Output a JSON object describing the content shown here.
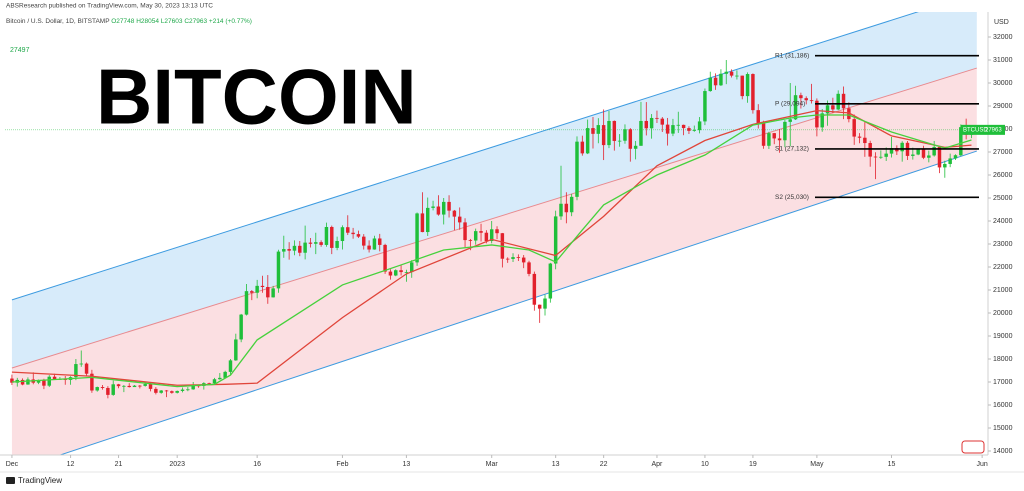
{
  "header": {
    "publisher": "ABSResearch published on TradingView.com, May 30, 2023 13:13 UTC",
    "symbol": "Bitcoin / U.S. Dollar, 1D, BITSTAMP",
    "ohlc": [
      "O27748",
      "H28054",
      "L27603",
      "C27963",
      "+214 (+0.77%)"
    ]
  },
  "overlay_title": "BITCOIN",
  "side_label": "27497",
  "footer": "TradingView",
  "chart_data": {
    "type": "candlestick",
    "series_name": "BTCUSD",
    "currency": "USD",
    "up_color": "#1fbf3a",
    "down_color": "#e2202c",
    "open": [
      17150,
      16970,
      17090,
      16890,
      17110,
      16970,
      17090,
      16840,
      17230,
      17130,
      17130,
      17090,
      17210,
      17780,
      17800,
      17360,
      16630,
      16780,
      16740,
      16440,
      16900,
      16820,
      16830,
      16780,
      16840,
      16830,
      16910,
      16700,
      16530,
      16630,
      16600,
      16530,
      16610,
      16670,
      16680,
      16850,
      16830,
      16950,
      16940,
      17120,
      17180,
      17440,
      17940,
      18850,
      19930,
      20950,
      20880,
      21180,
      21130,
      20680,
      21070,
      22670,
      22780,
      22710,
      22920,
      22620,
      23060,
      23010,
      23080,
      22960,
      23740,
      22830,
      23130,
      23730,
      23490,
      23430,
      23320,
      22930,
      22760,
      23240,
      22960,
      21800,
      21630,
      21860,
      21780,
      21780,
      22200,
      24330,
      23520,
      24570,
      24630,
      24280,
      24830,
      24450,
      24190,
      23940,
      23170,
      23150,
      23560,
      23490,
      23130,
      23640,
      23470,
      22360,
      22350,
      22430,
      22410,
      22200,
      21700,
      20360,
      20190,
      20630,
      22150,
      24200,
      24750,
      24380,
      25050,
      27450,
      26940,
      28040,
      27790,
      28170,
      27300,
      28350,
      27480,
      27490,
      27990,
      27140,
      27270,
      28350,
      28030,
      28480,
      28450,
      28190,
      27800,
      28170,
      28180,
      28040,
      27920,
      27950,
      28330,
      29650,
      30230,
      29900,
      30400,
      30490,
      30320,
      30320,
      29430,
      30390,
      28820,
      28250,
      27270,
      27820,
      27590,
      27510,
      28310,
      28420,
      29470,
      29340,
      29250,
      29230,
      28070,
      28680,
      29030,
      28850,
      29530,
      28900,
      28430,
      27670,
      27620,
      27390,
      26800,
      26780,
      26790,
      26930,
      27170,
      27030,
      27400,
      26830,
      26890,
      27120,
      26750,
      26850,
      27220,
      26330,
      26480,
      26720,
      26860,
      28080,
      27748
    ],
    "high": [
      17320,
      17180,
      17160,
      17200,
      17420,
      17110,
      17140,
      17300,
      17360,
      17220,
      17260,
      17250,
      18000,
      18370,
      17850,
      17530,
      16800,
      16870,
      16820,
      17060,
      16920,
      16870,
      16950,
      16870,
      16870,
      16940,
      16960,
      16780,
      16650,
      16650,
      16630,
      16630,
      16760,
      16780,
      17000,
      16890,
      16990,
      16970,
      17180,
      17390,
      17490,
      18000,
      19100,
      19960,
      21260,
      21000,
      21440,
      21620,
      21650,
      21180,
      22750,
      23360,
      23080,
      23160,
      23130,
      23800,
      23260,
      23490,
      23160,
      23930,
      23800,
      23320,
      23810,
      24250,
      23700,
      23580,
      23430,
      23160,
      23360,
      23440,
      23010,
      21900,
      21900,
      22080,
      21880,
      22300,
      24370,
      25250,
      25020,
      24880,
      25120,
      25000,
      25120,
      24480,
      24590,
      24120,
      23220,
      23670,
      23880,
      23600,
      24000,
      23770,
      23480,
      22420,
      22600,
      22550,
      22520,
      22270,
      21800,
      20370,
      20800,
      22180,
      24450,
      26400,
      25250,
      25180,
      27680,
      27710,
      28410,
      28520,
      28470,
      28850,
      28780,
      28370,
      27780,
      28200,
      28040,
      27480,
      29180,
      29170,
      28650,
      28800,
      28520,
      28480,
      28440,
      28750,
      28190,
      28120,
      28150,
      28520,
      29760,
      30490,
      30420,
      30600,
      31000,
      30590,
      30550,
      30320,
      30460,
      30420,
      29080,
      28360,
      27880,
      27830,
      28000,
      28390,
      30000,
      29880,
      29580,
      29420,
      29960,
      29330,
      28870,
      29240,
      29360,
      29680,
      29850,
      29160,
      28630,
      27820,
      28330,
      27490,
      26990,
      27070,
      27200,
      27650,
      27290,
      27470,
      27480,
      27190,
      27150,
      27270,
      27060,
      27480,
      27220,
      26620,
      26930,
      26900,
      28200,
      28450,
      28054
    ],
    "low": [
      16870,
      16800,
      16860,
      16880,
      16900,
      16910,
      16690,
      16780,
      17100,
      17090,
      16880,
      16880,
      17080,
      17660,
      17280,
      16530,
      16580,
      16670,
      16290,
      16400,
      16730,
      16560,
      16760,
      16780,
      16720,
      16800,
      16590,
      16460,
      16490,
      16340,
      16490,
      16500,
      16550,
      16600,
      16660,
      16750,
      16670,
      16910,
      16910,
      17100,
      17150,
      17320,
      17920,
      18730,
      19890,
      20560,
      20640,
      20880,
      20400,
      20670,
      20880,
      22400,
      22320,
      22510,
      22470,
      22330,
      22850,
      22560,
      22880,
      22880,
      22560,
      22730,
      22760,
      23390,
      23230,
      23260,
      22760,
      22630,
      22750,
      22680,
      21700,
      21450,
      21600,
      21630,
      21360,
      21530,
      22050,
      23510,
      23350,
      24460,
      24230,
      23850,
      24150,
      23600,
      23620,
      22860,
      22730,
      22970,
      23110,
      23030,
      23030,
      23210,
      21980,
      22180,
      22220,
      22260,
      21950,
      21600,
      20100,
      19570,
      19890,
      20450,
      21900,
      24050,
      23900,
      24210,
      24900,
      26840,
      26910,
      27150,
      27380,
      26650,
      27170,
      27060,
      27230,
      27360,
      26580,
      26680,
      27270,
      27720,
      27580,
      28260,
      27870,
      27280,
      27690,
      27830,
      27730,
      27780,
      27880,
      27810,
      28170,
      29620,
      29700,
      29870,
      29950,
      30240,
      30150,
      29290,
      29140,
      28670,
      28020,
      27140,
      27130,
      27340,
      26970,
      27210,
      27250,
      28390,
      28890,
      29070,
      29110,
      27680,
      27880,
      28140,
      28690,
      28820,
      28430,
      28290,
      27310,
      27380,
      26790,
      26360,
      25820,
      26700,
      26610,
      26760,
      26870,
      26580,
      26650,
      26670,
      26860,
      26690,
      26550,
      26800,
      26080,
      25880,
      26340,
      26650,
      26820,
      27550,
      27603
    ],
    "close": [
      16970,
      17090,
      16890,
      17110,
      16970,
      17090,
      16840,
      17230,
      17130,
      17130,
      17090,
      17210,
      17780,
      17800,
      17360,
      16630,
      16780,
      16740,
      16440,
      16900,
      16820,
      16830,
      16780,
      16840,
      16830,
      16910,
      16700,
      16530,
      16630,
      16600,
      16530,
      16610,
      16670,
      16680,
      16850,
      16830,
      16950,
      16940,
      17120,
      17180,
      17440,
      17940,
      18850,
      19930,
      20950,
      20880,
      21180,
      21130,
      20680,
      21070,
      22670,
      22780,
      22710,
      22920,
      22620,
      23060,
      23010,
      23080,
      22960,
      23740,
      22830,
      23130,
      23730,
      23490,
      23430,
      23320,
      22930,
      22760,
      23240,
      22960,
      21800,
      21630,
      21860,
      21780,
      21780,
      22200,
      24330,
      23520,
      24570,
      24630,
      24280,
      24830,
      24450,
      24190,
      23940,
      23170,
      23150,
      23560,
      23490,
      23130,
      23640,
      23470,
      22360,
      22350,
      22430,
      22410,
      22200,
      21700,
      20360,
      20190,
      20630,
      22150,
      24200,
      24750,
      24380,
      25050,
      27450,
      26940,
      28040,
      27790,
      28170,
      27300,
      28350,
      27480,
      27490,
      27990,
      27140,
      27270,
      28350,
      28030,
      28480,
      28450,
      28190,
      27800,
      28170,
      28180,
      28040,
      27920,
      27950,
      28330,
      29650,
      30230,
      29900,
      30400,
      30490,
      30320,
      30320,
      29430,
      30390,
      28820,
      28250,
      27270,
      27820,
      27590,
      27510,
      28310,
      28420,
      29470,
      29340,
      29250,
      29230,
      28070,
      28680,
      29030,
      28850,
      29530,
      28900,
      28430,
      27670,
      27620,
      27390,
      26800,
      26780,
      26790,
      26930,
      27170,
      27030,
      27400,
      26830,
      26890,
      27120,
      26750,
      26850,
      27220,
      26330,
      26480,
      26720,
      26860,
      28080,
      27749,
      27963
    ],
    "xlim": [
      -1.3,
      183.1
    ],
    "xticks": [
      {
        "value": 0,
        "label": "Dec"
      },
      {
        "value": 11,
        "label": "12"
      },
      {
        "value": 20,
        "label": "21"
      },
      {
        "value": 31,
        "label": "2023"
      },
      {
        "value": 46,
        "label": "16"
      },
      {
        "value": 62,
        "label": "Feb"
      },
      {
        "value": 74,
        "label": "13"
      },
      {
        "value": 90,
        "label": "Mar"
      },
      {
        "value": 102,
        "label": "13"
      },
      {
        "value": 111,
        "label": "22"
      },
      {
        "value": 121,
        "label": "Apr"
      },
      {
        "value": 130,
        "label": "10"
      },
      {
        "value": 139,
        "label": "19"
      },
      {
        "value": 151,
        "label": "May"
      },
      {
        "value": 165,
        "label": "15"
      },
      {
        "value": 182,
        "label": "Jun"
      }
    ],
    "ylim": [
      13826,
      33087
    ],
    "yticks": [
      14000,
      15000,
      16000,
      17000,
      18000,
      19000,
      20000,
      21000,
      22000,
      23000,
      24000,
      25000,
      26000,
      27000,
      28000,
      29000,
      30000,
      31000,
      32000
    ],
    "moving_averages": [
      {
        "color": "#e0453a",
        "x": [
          0,
          15,
          31,
          40,
          46,
          62,
          74,
          90,
          102,
          111,
          121,
          130,
          139,
          151,
          157,
          165,
          175,
          180
        ],
        "values": [
          17430,
          17250,
          16860,
          16900,
          16950,
          19800,
          21700,
          23200,
          22500,
          24200,
          26400,
          27500,
          28200,
          28800,
          28700,
          27700,
          27200,
          27300
        ]
      },
      {
        "color": "#46d13c",
        "x": [
          0,
          15,
          31,
          38,
          41,
          46,
          62,
          73,
          81,
          90,
          97,
          102,
          107,
          111,
          121,
          130,
          139,
          146,
          151,
          157,
          165,
          175,
          180
        ],
        "values": [
          17000,
          17200,
          16800,
          16900,
          17300,
          18830,
          21220,
          22090,
          22740,
          22960,
          22740,
          22220,
          23610,
          24700,
          26000,
          26870,
          28170,
          28480,
          28610,
          28610,
          27870,
          27170,
          27520
        ]
      }
    ],
    "channel": {
      "x": [
        0,
        181
      ],
      "upper": [
        20570,
        33910
      ],
      "middle": [
        17610,
        30650
      ],
      "lower": [
        13130,
        27040
      ],
      "upper_color": "#3d9be0",
      "middle_color": "#e88a8f",
      "upper_fill": "#d7ebfa",
      "lower_fill": "#fbdfe2"
    },
    "pivots": [
      {
        "value": 31186,
        "label": "R1 (31,186)"
      },
      {
        "value": 29094,
        "label": "P (29,094)"
      },
      {
        "value": 27132,
        "label": "S1 (27,132)"
      },
      {
        "value": 25030,
        "label": "S2 (25,030)"
      }
    ]
  }
}
